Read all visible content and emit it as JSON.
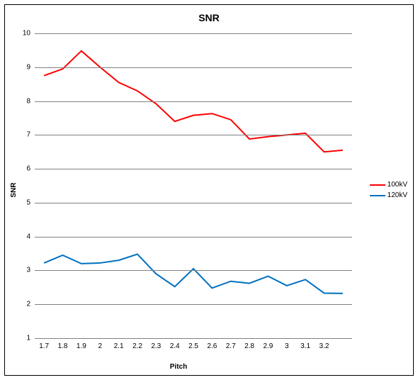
{
  "chart": {
    "type": "line",
    "title": "SNR",
    "title_fontsize": 14,
    "title_fontweight": "bold",
    "xlabel": "Pitch",
    "ylabel": "SNR",
    "label_fontsize": 10,
    "label_fontweight": "bold",
    "background_color": "#ffffff",
    "grid_color": "#808080",
    "axis_color": "#808080",
    "line_width": 2,
    "xlim": [
      1.65,
      3.35
    ],
    "ylim": [
      1,
      10
    ],
    "xticks": [
      1.7,
      1.8,
      1.9,
      2.0,
      2.1,
      2.2,
      2.3,
      2.4,
      2.5,
      2.6,
      2.7,
      2.8,
      2.9,
      3.0,
      3.1,
      3.2
    ],
    "xtick_labels": [
      "1.7",
      "1.8",
      "1.9",
      "2",
      "2.1",
      "2.2",
      "2.3",
      "2.4",
      "2.5",
      "2.6",
      "2.7",
      "2.8",
      "2.9",
      "3",
      "3.1",
      "3.2"
    ],
    "yticks": [
      1,
      2,
      3,
      4,
      5,
      6,
      7,
      8,
      9,
      10
    ],
    "ytick_labels": [
      "1",
      "2",
      "3",
      "4",
      "5",
      "6",
      "7",
      "8",
      "9",
      "10"
    ],
    "x": [
      1.7,
      1.8,
      1.9,
      2.0,
      2.1,
      2.2,
      2.3,
      2.4,
      2.5,
      2.6,
      2.7,
      2.8,
      2.9,
      3.0,
      3.1,
      3.2,
      3.3
    ],
    "series": [
      {
        "name": "100kV",
        "color": "#ff0000",
        "y": [
          8.75,
          8.95,
          9.48,
          9.0,
          8.55,
          8.3,
          7.92,
          7.4,
          7.58,
          7.63,
          7.45,
          6.88,
          6.95,
          7.0,
          7.05,
          6.5,
          6.55
        ]
      },
      {
        "name": "120kV",
        "color": "#0070c0",
        "y": [
          3.22,
          3.45,
          3.2,
          3.22,
          3.3,
          3.48,
          2.9,
          2.52,
          3.05,
          2.48,
          2.68,
          2.62,
          2.83,
          2.55,
          2.73,
          2.33,
          2.32
        ]
      }
    ],
    "legend": {
      "items": [
        {
          "label": "100kV",
          "color": "#ff0000"
        },
        {
          "label": "120kV",
          "color": "#0070c0"
        }
      ]
    }
  }
}
